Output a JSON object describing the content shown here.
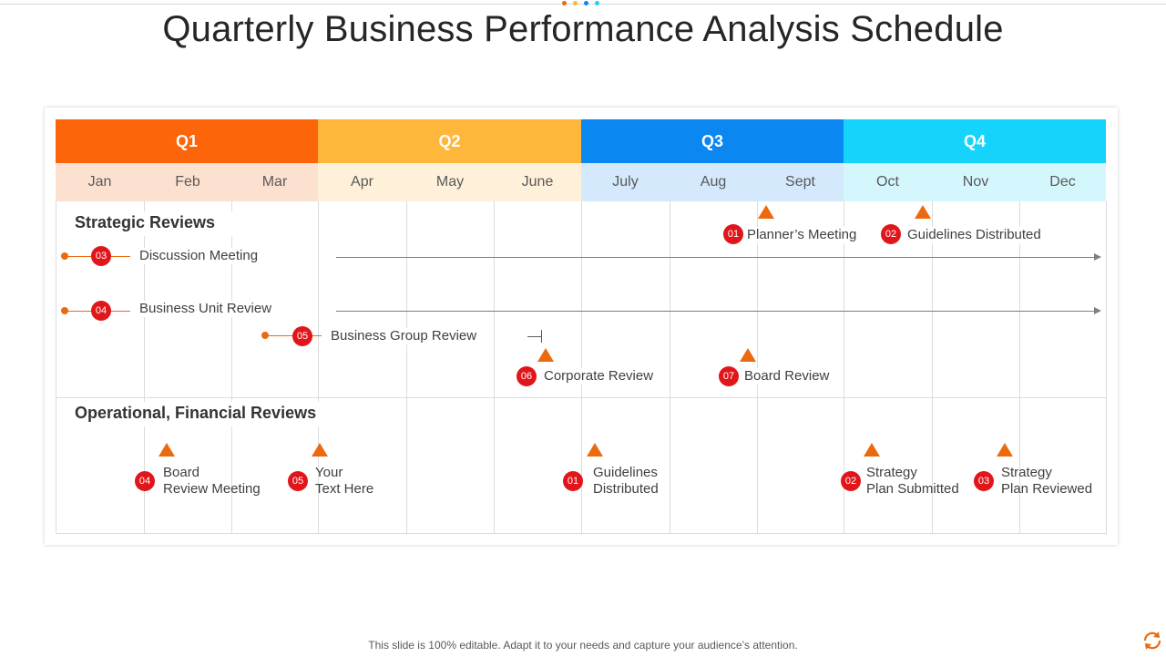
{
  "title": "Quarterly Business Performance Analysis  Schedule",
  "colors": {
    "q1": "#fd650b",
    "q2": "#feb63b",
    "q3": "#0a87f1",
    "q4": "#16d3fb",
    "m1": "#fde1d0",
    "m2": "#fff0d9",
    "m3": "#d4e9fc",
    "m4": "#d4f6fd",
    "badge": "#e0161b",
    "marker": "#ec6a0f"
  },
  "quarters": [
    "Q1",
    "Q2",
    "Q3",
    "Q4"
  ],
  "months": [
    "Jan",
    "Feb",
    "Mar",
    "Apr",
    "May",
    "June",
    "July",
    "Aug",
    "Sept",
    "Oct",
    "Nov",
    "Dec"
  ],
  "sections": {
    "strategic": "Strategic Reviews",
    "operational": "Operational, Financial Reviews"
  },
  "strategic_events": [
    {
      "num": "01",
      "label": "Planner’s Meeting"
    },
    {
      "num": "02",
      "label": "Guidelines Distributed"
    },
    {
      "num": "03",
      "label": "Discussion Meeting"
    },
    {
      "num": "04",
      "label": "Business Unit Review"
    },
    {
      "num": "05",
      "label": "Business Group Review"
    },
    {
      "num": "06",
      "label": "Corporate Review"
    },
    {
      "num": "07",
      "label": "Board Review"
    }
  ],
  "operational_events": [
    {
      "num": "04",
      "line1": "Board",
      "line2": "Review Meeting"
    },
    {
      "num": "05",
      "line1": "Your",
      "line2": "Text Here"
    },
    {
      "num": "01",
      "line1": "Guidelines",
      "line2": "Distributed"
    },
    {
      "num": "02",
      "line1": "Strategy",
      "line2": "Plan Submitted"
    },
    {
      "num": "03",
      "line1": "Strategy",
      "line2": "Plan Reviewed"
    }
  ],
  "footer": "This slide is 100% editable. Adapt it to your needs and capture your audience’s attention.",
  "icons": {
    "refresh": "refresh-icon"
  }
}
